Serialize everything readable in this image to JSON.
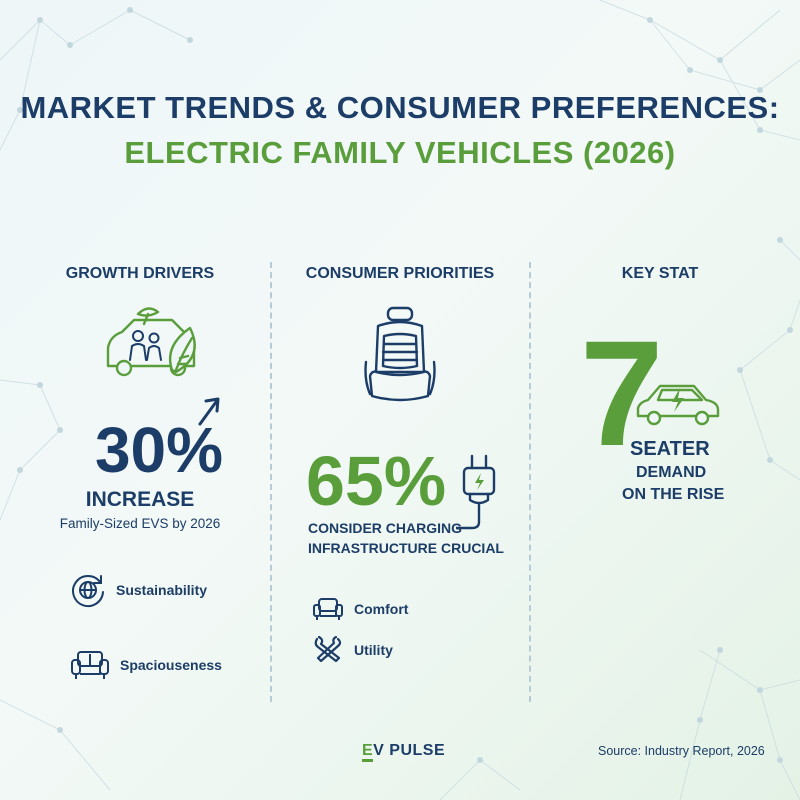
{
  "title": {
    "line1": "MARKET TRENDS & CONSUMER PREFERENCES:",
    "line2": "ELECTRIC FAMILY VEHICLES (2026)"
  },
  "growth_drivers": {
    "heading": "GROWTH DRIVERS",
    "stat": "30%",
    "stat_label": "INCREASE",
    "stat_sub": "Family-Sized EVS by 2026",
    "features": [
      {
        "label": "Sustainability",
        "icon": "globe-icon"
      },
      {
        "label": "Spaciouseness",
        "icon": "sofa-icon"
      }
    ],
    "hero_icon": "family-car-leaf-icon"
  },
  "consumer_priorities": {
    "heading": "CONSUMER PRIORITIES",
    "stat": "65%",
    "stat_line1": "CONSIDER CHARGING",
    "stat_line2": "INFRASTRUCTURE CRUCIAL",
    "features": [
      {
        "label": "Comfort",
        "icon": "armchair-icon"
      },
      {
        "label": "Utility",
        "icon": "tools-icon"
      }
    ],
    "hero_icon": "car-seat-icon"
  },
  "key_stat": {
    "heading": "KEY STAT",
    "number": "7",
    "line1": "SEATER",
    "line2": "DEMAND",
    "line3": "ON THE RISE",
    "icon": "electric-car-icon"
  },
  "footer": {
    "brand_e": "E",
    "brand_rest": "V PULSE",
    "source": "Source: Industry Report, 2026"
  },
  "colors": {
    "navy": "#1c3d67",
    "green": "#5a9e3c",
    "background": "#eef6f8"
  }
}
